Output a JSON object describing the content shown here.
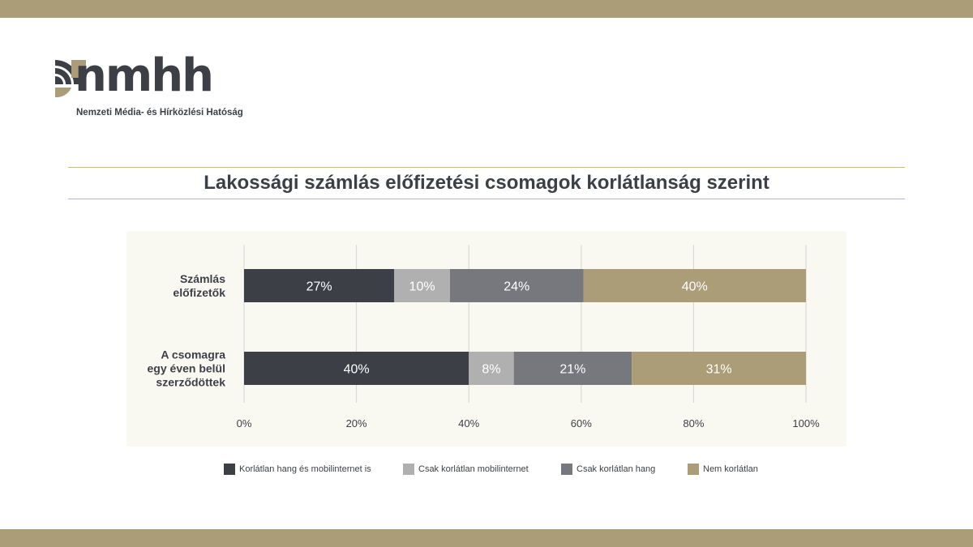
{
  "header": {
    "logo_text": "nmhh",
    "org_name": "Nemzeti Média- és Hírközlési Hatóság"
  },
  "colors": {
    "band": "#ab9d77",
    "panel": "#f9f8f1"
  },
  "chart_data": {
    "type": "bar",
    "orientation": "horizontal-stacked-100",
    "title": "Lakossági számlás előfizetési csomagok korlátlanság szerint",
    "categories": [
      [
        "Számlás",
        "előfizetők"
      ],
      [
        "A csomagra",
        "egy éven belül",
        "szerződöttek"
      ]
    ],
    "series": [
      {
        "name": "Korlátlan hang és mobilinternet is",
        "color": "#3d3f47",
        "values": [
          27,
          40
        ],
        "labels": [
          "27%",
          "40%"
        ]
      },
      {
        "name": "Csak korlátlan mobilinternet",
        "color": "#b1b0b1",
        "values": [
          10,
          8
        ],
        "labels": [
          "10%",
          "8%"
        ]
      },
      {
        "name": "Csak korlátlan hang",
        "color": "#77787d",
        "values": [
          24,
          21
        ],
        "labels": [
          "24%",
          "21%"
        ]
      },
      {
        "name": "Nem korlátlan",
        "color": "#ab9d77",
        "values": [
          40,
          31
        ],
        "labels": [
          "40%",
          "31%"
        ]
      }
    ],
    "xlim": [
      0,
      100
    ],
    "xticks": [
      "0%",
      "20%",
      "40%",
      "60%",
      "80%",
      "100%"
    ],
    "grid": true,
    "legend": "bottom"
  }
}
